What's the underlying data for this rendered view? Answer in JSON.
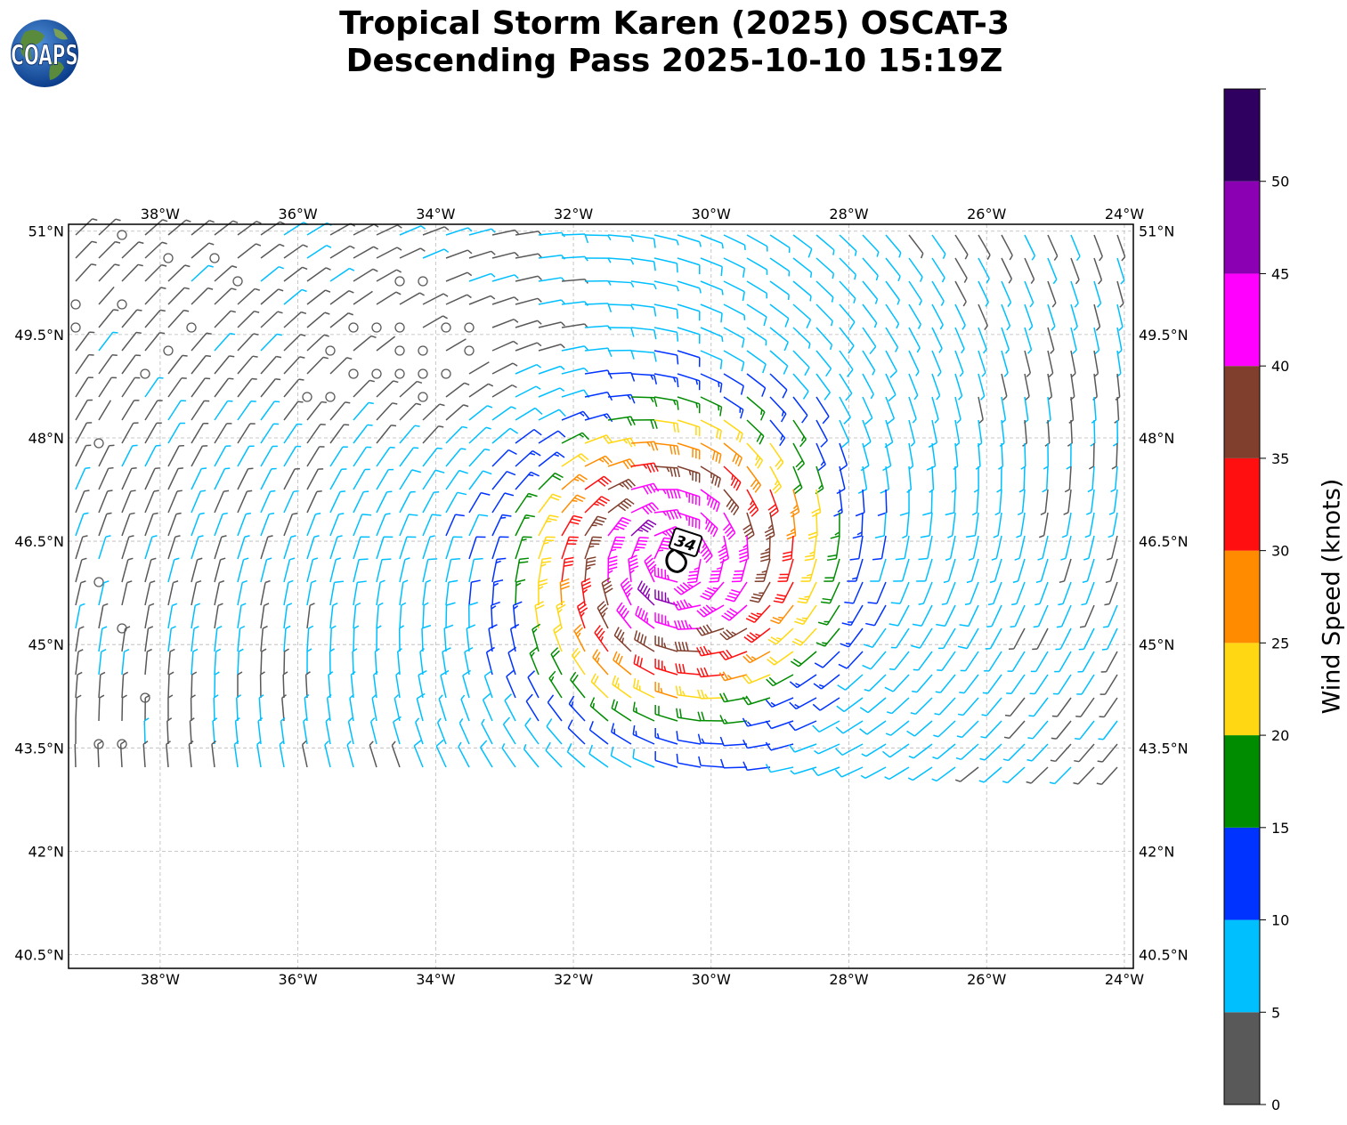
{
  "title": {
    "line1": "Tropical Storm Karen (2025) OSCAT-3",
    "line2": "Descending Pass 2025-10-10 15:19Z"
  },
  "logo": {
    "text": "COAPS",
    "icon": "globe-icon"
  },
  "map": {
    "lon_range": [
      -39.33,
      -23.87
    ],
    "lat_range": [
      40.3,
      51.1
    ],
    "lon_ticks": [
      "38°W",
      "36°W",
      "34°W",
      "32°W",
      "30°W",
      "28°W",
      "26°W",
      "24°W"
    ],
    "lon_tick_values": [
      -38,
      -36,
      -34,
      -32,
      -30,
      -28,
      -26,
      -24
    ],
    "lat_ticks": [
      "51°N",
      "49.5°N",
      "48°N",
      "46.5°N",
      "45°N",
      "43.5°N",
      "42°N",
      "40.5°N"
    ],
    "lat_tick_values": [
      51,
      49.5,
      48,
      46.5,
      45,
      43.5,
      42,
      40.5
    ],
    "gridlines": true,
    "storm_center": {
      "lon": -30.5,
      "lat": 46.2
    },
    "storm_label": "34",
    "storm_marker_icon": "tropical-storm-icon",
    "wind_barbs_icon": "wind-barb-icon"
  },
  "colorbar": {
    "label": "Wind Speed (knots)",
    "tick_labels": [
      "0",
      "5",
      "10",
      "15",
      "20",
      "25",
      "30",
      "35",
      "40",
      "45",
      "50"
    ],
    "tick_values": [
      0,
      5,
      10,
      15,
      20,
      25,
      30,
      35,
      40,
      45,
      50
    ],
    "max": 55,
    "bins": [
      {
        "from": 0,
        "to": 5,
        "color": "#595959"
      },
      {
        "from": 5,
        "to": 10,
        "color": "#00bfff"
      },
      {
        "from": 10,
        "to": 15,
        "color": "#0033ff"
      },
      {
        "from": 15,
        "to": 20,
        "color": "#008c00"
      },
      {
        "from": 20,
        "to": 25,
        "color": "#ffd712"
      },
      {
        "from": 25,
        "to": 30,
        "color": "#ff8c00"
      },
      {
        "from": 30,
        "to": 35,
        "color": "#ff0f0f"
      },
      {
        "from": 35,
        "to": 40,
        "color": "#803e2c"
      },
      {
        "from": 40,
        "to": 45,
        "color": "#ff00ff"
      },
      {
        "from": 45,
        "to": 50,
        "color": "#8c00b4"
      },
      {
        "from": 50,
        "to": 55,
        "color": "#2f005f"
      }
    ]
  }
}
